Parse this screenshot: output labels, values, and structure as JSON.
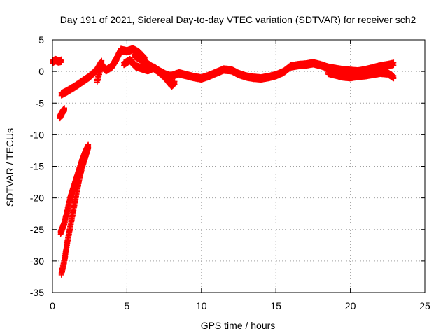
{
  "chart_data": {
    "type": "scatter",
    "title": "Day 191 of 2021, Sidereal Day-to-day VTEC variation (SDTVAR) for receiver sch2",
    "xlabel": "GPS time / hours",
    "ylabel": "SDTVAR / TECUs",
    "xlim": [
      0,
      25
    ],
    "ylim": [
      -35,
      5
    ],
    "xticks": [
      0,
      5,
      10,
      15,
      20,
      25
    ],
    "yticks": [
      -35,
      -30,
      -25,
      -20,
      -15,
      -10,
      -5,
      0,
      5
    ],
    "grid": true,
    "marker": "+",
    "series": [
      {
        "name": "sch2",
        "color": "#ff0000",
        "segments": [
          {
            "x": [
              0.0,
              0.2,
              0.4,
              0.6
            ],
            "y": [
              1.5,
              1.8,
              1.6,
              1.7
            ]
          },
          {
            "x": [
              0.5,
              0.65,
              0.8
            ],
            "y": [
              -7.2,
              -6.5,
              -6.0
            ]
          },
          {
            "x": [
              0.55,
              0.8,
              1.0,
              1.2,
              1.4,
              1.6,
              1.8,
              2.0,
              2.2,
              2.4
            ],
            "y": [
              -25.5,
              -24.0,
              -22.0,
              -20.0,
              -18.5,
              -17.0,
              -15.5,
              -14.0,
              -12.8,
              -11.8
            ]
          },
          {
            "x": [
              0.6,
              0.8,
              1.0,
              1.2,
              1.4,
              1.6,
              1.8,
              2.0,
              2.2,
              2.4
            ],
            "y": [
              -32.0,
              -30.0,
              -27.0,
              -24.5,
              -22.0,
              -19.5,
              -17.0,
              -15.0,
              -13.5,
              -12.0
            ]
          },
          {
            "x": [
              0.6,
              1.0,
              1.5,
              2.0,
              2.5,
              3.0,
              3.3
            ],
            "y": [
              -3.6,
              -3.1,
              -2.4,
              -1.6,
              -0.8,
              0.3,
              1.5
            ]
          },
          {
            "x": [
              3.0,
              3.3,
              3.6,
              4.0,
              4.3,
              4.6,
              5.0,
              5.4,
              5.8,
              6.2
            ],
            "y": [
              -1.5,
              1.0,
              0.2,
              0.8,
              2.0,
              3.4,
              3.2,
              3.5,
              3.0,
              2.0
            ]
          },
          {
            "x": [
              4.8,
              5.2,
              5.6,
              6.0,
              6.4,
              6.8,
              7.2,
              7.6,
              8.0
            ],
            "y": [
              1.2,
              1.8,
              0.8,
              0.5,
              0.2,
              0.6,
              0.0,
              -0.5,
              -0.8
            ]
          },
          {
            "x": [
              5.5,
              6.0,
              6.5,
              7.0,
              7.5,
              7.8,
              8.0,
              8.2
            ],
            "y": [
              2.5,
              1.8,
              1.0,
              0.2,
              -0.8,
              -1.6,
              -2.2,
              -1.8
            ]
          },
          {
            "x": [
              8.0,
              8.5,
              9.0,
              9.5,
              10.0,
              10.5,
              11.0,
              11.5,
              12.0,
              12.5,
              13.0,
              13.5,
              14.0,
              14.5,
              15.0,
              15.5,
              16.0,
              16.5,
              17.0,
              17.5,
              18.0,
              18.5,
              19.0,
              19.5,
              20.0,
              20.5,
              21.0,
              21.5,
              22.0,
              22.5,
              22.9
            ],
            "y": [
              -0.7,
              -0.3,
              -0.6,
              -0.9,
              -1.1,
              -0.7,
              -0.2,
              0.3,
              0.2,
              -0.4,
              -0.8,
              -1.0,
              -1.1,
              -0.9,
              -0.6,
              -0.1,
              0.8,
              1.0,
              1.1,
              1.3,
              1.0,
              0.6,
              0.4,
              0.2,
              0.1,
              0.0,
              0.2,
              0.5,
              0.8,
              1.0,
              1.2
            ]
          },
          {
            "x": [
              18.5,
              19.0,
              19.5,
              20.0,
              20.5,
              21.0,
              21.5,
              22.0,
              22.5,
              22.9
            ],
            "y": [
              -0.2,
              -0.5,
              -0.8,
              -0.9,
              -0.7,
              -0.6,
              -0.4,
              -0.2,
              -0.3,
              -0.9
            ]
          }
        ]
      }
    ]
  }
}
